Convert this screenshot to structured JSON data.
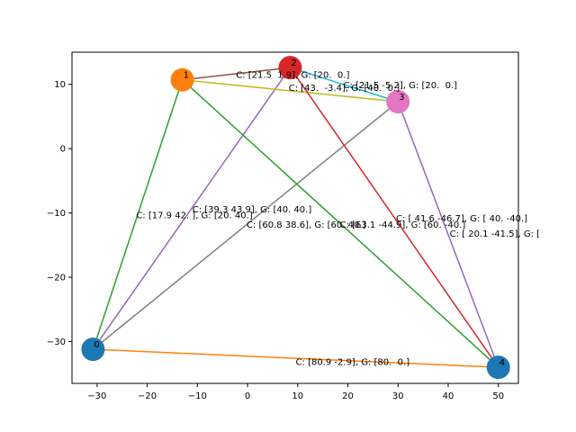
{
  "chart_data": {
    "type": "scatter",
    "title": "",
    "xlabel": "",
    "ylabel": "",
    "xlim": [
      -35,
      54
    ],
    "ylim": [
      -36.5,
      15
    ],
    "xticks": [
      -30,
      -20,
      -10,
      0,
      10,
      20,
      30,
      40,
      50
    ],
    "yticks": [
      -30,
      -20,
      -10,
      0,
      10
    ],
    "xtick_labels": [
      "−30",
      "−20",
      "−10",
      "0",
      "10",
      "20",
      "30",
      "40",
      "50"
    ],
    "ytick_labels": [
      "−30",
      "−20",
      "−10",
      "0",
      "10"
    ],
    "grid": false,
    "nodes": [
      {
        "label": "0",
        "x": -30.8,
        "y": -31.2,
        "color": "#1f77b4"
      },
      {
        "label": "1",
        "x": -13.0,
        "y": 10.7,
        "color": "#ff7f0e"
      },
      {
        "label": "2",
        "x": 8.5,
        "y": 12.6,
        "color": "#d62728"
      },
      {
        "label": "3",
        "x": 30.0,
        "y": 7.3,
        "color": "#e377c2"
      },
      {
        "label": "4",
        "x": 50.0,
        "y": -34.0,
        "color": "#1f77b4"
      }
    ],
    "edges": [
      {
        "from": 0,
        "to": 4,
        "color": "#ff7f0e"
      },
      {
        "from": 0,
        "to": 1,
        "color": "#2ca02c"
      },
      {
        "from": 0,
        "to": 2,
        "color": "#9467bd"
      },
      {
        "from": 0,
        "to": 3,
        "color": "#7f7f7f"
      },
      {
        "from": 1,
        "to": 2,
        "color": "#8c564b"
      },
      {
        "from": 1,
        "to": 3,
        "color": "#bcbd22"
      },
      {
        "from": 1,
        "to": 4,
        "color": "#2ca02c"
      },
      {
        "from": 2,
        "to": 3,
        "color": "#17becf"
      },
      {
        "from": 2,
        "to": 4,
        "color": "#d62728"
      },
      {
        "from": 3,
        "to": 4,
        "color": "#9467bd"
      }
    ],
    "edge_labels": [
      {
        "text": "C: [80.9 -2.9], G: [80.  0.]",
        "x": 9.6,
        "y": -33.6
      },
      {
        "text": "C: [17.9 42. ], G: [20. 40.]",
        "x": -22.2,
        "y": -10.8
      },
      {
        "text": "C: [39.3 43.9], G: [40. 40.]",
        "x": -11.0,
        "y": -9.9
      },
      {
        "text": "C: [60.8 38.6], G: [60. 40.]",
        "x": -0.2,
        "y": -12.3
      },
      {
        "text": "C: [21.5  1.9], G: [20.  0.]",
        "x": -2.3,
        "y": 11.0
      },
      {
        "text": "C: [43.  -3.4], G: [40.  0.]",
        "x": 8.2,
        "y": 9.0
      },
      {
        "text": "C: [63.1 -44.9], G: [60. -40.]",
        "x": 18.4,
        "y": -12.3
      },
      {
        "text": "C: [21.5 -5.2], G: [20.  0.]",
        "x": 19.1,
        "y": 9.4
      },
      {
        "text": "C: [ 41.6 -46.7], G: [ 40. -40.]",
        "x": 29.6,
        "y": -11.3
      },
      {
        "text": "C: [ 20.1 -41.5], G: [",
        "x": 40.3,
        "y": -13.7
      }
    ]
  }
}
